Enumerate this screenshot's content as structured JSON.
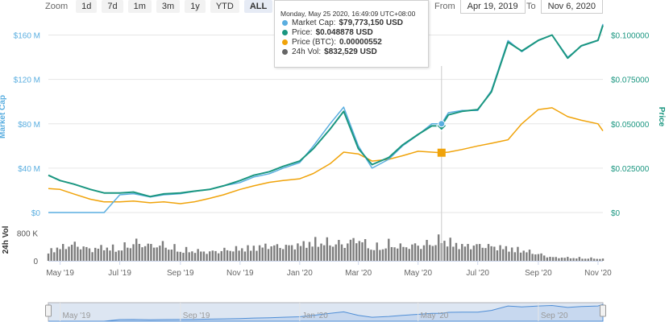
{
  "zoom": {
    "label": "Zoom",
    "buttons": [
      "1d",
      "7d",
      "1m",
      "3m",
      "1y",
      "YTD",
      "ALL"
    ],
    "active": "ALL"
  },
  "range": {
    "from_label": "From",
    "from_value": "Apr 19, 2019",
    "to_label": "To",
    "to_value": "Nov 6, 2020"
  },
  "tooltip": {
    "date": "Monday, May 25 2020, 16:49:09 UTC+08:00",
    "rows": [
      {
        "label": "Market Cap:",
        "value": "$79,773,150 USD",
        "color": "#5aaee0"
      },
      {
        "label": "Price:",
        "value": "$0.048878 USD",
        "color": "#1a9680"
      },
      {
        "label": "Price (BTC):",
        "value": "0.00000552",
        "color": "#f0a30a"
      },
      {
        "label": "24h Vol:",
        "value": "$832,529 USD",
        "color": "#666666"
      }
    ]
  },
  "colors": {
    "market_cap": "#5aaee0",
    "price": "#1a9680",
    "price_btc": "#f0a30a",
    "volume": "#666666",
    "grid": "#e6e6e6",
    "navigator": "#4f8ed6"
  },
  "chart_data": {
    "type": "line",
    "left_axis": {
      "title": "Market Cap",
      "ticks": [
        "$0",
        "$40 M",
        "$80 M",
        "$120 M",
        "$160 M"
      ],
      "tick_values": [
        0,
        40,
        80,
        120,
        160
      ],
      "range": [
        0,
        172
      ]
    },
    "right_axis": {
      "title": "Price",
      "ticks": [
        "$0",
        "$0.025000",
        "$0.050000",
        "$0.075000",
        "$0.100000"
      ],
      "tick_values": [
        0,
        0.025,
        0.05,
        0.075,
        0.1
      ],
      "range": [
        0,
        0.1075
      ]
    },
    "volume_axis": {
      "title": "24h Vol",
      "ticks": [
        "0",
        "800 K"
      ],
      "tick_values": [
        0,
        800000
      ],
      "range": [
        0,
        1200000
      ]
    },
    "x_ticks": [
      "May '19",
      "Jul '19",
      "Sep '19",
      "Nov '19",
      "Jan '20",
      "Mar '20",
      "May '20",
      "Jul '20",
      "Sep '20",
      "Nov '20"
    ],
    "x_tick_dates": [
      "2019-05-01",
      "2019-07-01",
      "2019-09-01",
      "2019-11-01",
      "2020-01-01",
      "2020-03-01",
      "2020-05-01",
      "2020-07-01",
      "2020-09-01",
      "2020-11-01"
    ],
    "navigator_ticks": [
      "May '19",
      "Sep '19",
      "Jan '20",
      "May '20",
      "Sep '20"
    ],
    "navigator_tick_dates": [
      "2019-05-01",
      "2019-09-01",
      "2020-01-01",
      "2020-05-01",
      "2020-09-01"
    ],
    "x_range": [
      "2019-04-19",
      "2020-11-06"
    ],
    "dates": [
      "2019-04-19",
      "2019-05-01",
      "2019-05-15",
      "2019-06-01",
      "2019-06-15",
      "2019-07-01",
      "2019-07-15",
      "2019-08-01",
      "2019-08-15",
      "2019-09-01",
      "2019-09-15",
      "2019-10-01",
      "2019-10-15",
      "2019-11-01",
      "2019-11-15",
      "2019-12-01",
      "2019-12-15",
      "2020-01-01",
      "2020-01-15",
      "2020-02-01",
      "2020-02-15",
      "2020-03-01",
      "2020-03-15",
      "2020-04-01",
      "2020-04-15",
      "2020-05-01",
      "2020-05-15",
      "2020-05-25",
      "2020-06-01",
      "2020-06-15",
      "2020-07-01",
      "2020-07-15",
      "2020-08-01",
      "2020-08-15",
      "2020-09-01",
      "2020-09-15",
      "2020-10-01",
      "2020-10-15",
      "2020-11-01",
      "2020-11-06"
    ],
    "series": [
      {
        "name": "Market Cap",
        "axis": "left",
        "unit": "M USD",
        "values": [
          0,
          0,
          0,
          0,
          0,
          16,
          17,
          14,
          16,
          17,
          19,
          21,
          24,
          27,
          32,
          35,
          40,
          45,
          60,
          80,
          95,
          60,
          40,
          48,
          60,
          70,
          80,
          80,
          90,
          92,
          92,
          110,
          155,
          145,
          155,
          160,
          140,
          150,
          155,
          170
        ]
      },
      {
        "name": "Price",
        "axis": "right",
        "unit": "USD",
        "values": [
          0.021,
          0.018,
          0.016,
          0.013,
          0.011,
          0.011,
          0.0115,
          0.009,
          0.0105,
          0.011,
          0.012,
          0.013,
          0.015,
          0.018,
          0.021,
          0.023,
          0.026,
          0.029,
          0.036,
          0.047,
          0.057,
          0.036,
          0.027,
          0.031,
          0.038,
          0.044,
          0.0488,
          0.0489,
          0.055,
          0.057,
          0.058,
          0.068,
          0.096,
          0.091,
          0.097,
          0.1,
          0.087,
          0.094,
          0.097,
          0.1055
        ]
      },
      {
        "name": "Price (BTC)",
        "axis": "right",
        "unit": "USD scale",
        "values": [
          0.0135,
          0.013,
          0.0105,
          0.0075,
          0.006,
          0.006,
          0.0065,
          0.0055,
          0.006,
          0.005,
          0.006,
          0.008,
          0.01,
          0.013,
          0.015,
          0.017,
          0.018,
          0.019,
          0.022,
          0.0275,
          0.034,
          0.033,
          0.029,
          0.03,
          0.032,
          0.0345,
          0.034,
          0.0337,
          0.034,
          0.0355,
          0.0375,
          0.039,
          0.041,
          0.05,
          0.058,
          0.059,
          0.054,
          0.052,
          0.05,
          0.046
        ]
      }
    ],
    "volume": [
      380,
      500,
      620,
      430,
      520,
      450,
      700,
      560,
      600,
      420,
      380,
      330,
      400,
      460,
      510,
      570,
      530,
      600,
      720,
      690,
      620,
      830,
      480,
      640,
      520,
      590,
      660,
      832,
      730,
      560,
      580,
      540,
      480,
      410,
      260,
      130,
      120,
      110,
      90,
      70
    ],
    "volume_unit": "K USD",
    "marker": {
      "date": "2020-05-25",
      "market_cap": 80,
      "price": 0.048878,
      "price_btc": 0.0337
    }
  }
}
